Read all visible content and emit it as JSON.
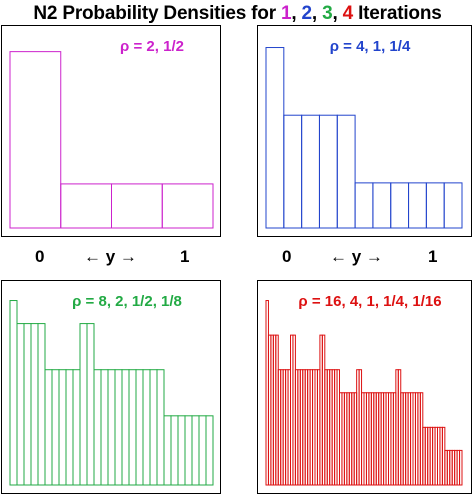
{
  "title": {
    "prefix": "N2 Probability Densities for ",
    "n1": "1",
    "sep1": ", ",
    "n2": "2",
    "sep2": ", ",
    "n3": "3",
    "sep3": ", ",
    "n4": "4",
    "suffix": " Iterations",
    "colors": {
      "n1": "#cc22cc",
      "n2": "#2244cc",
      "n3": "#22aa44",
      "n4": "#dd1111"
    }
  },
  "axis": {
    "left_tick": "0",
    "center_label": "← y →",
    "right_tick": "1"
  },
  "chart_data": [
    {
      "type": "bar",
      "annotation": "ρ = 2, 1/2",
      "color": "#cc22cc",
      "ylim": [
        0,
        2.2
      ],
      "bins": 4,
      "values": [
        2,
        0.5,
        0.5,
        0.5
      ]
    },
    {
      "type": "bar",
      "annotation": "ρ = 4, 1, 1/4",
      "color": "#2244cc",
      "ylim": [
        0,
        4.3
      ],
      "bins": 11,
      "values": [
        4,
        2.5,
        2.5,
        2.5,
        2.5,
        1,
        1,
        1,
        1,
        1,
        1
      ]
    },
    {
      "type": "bar",
      "annotation": "ρ = 8, 2, 1/2, 1/8",
      "color": "#22aa44",
      "ylim": [
        0,
        8.5
      ],
      "bins": 29,
      "values": [
        8,
        7,
        7,
        7,
        7,
        5,
        5,
        5,
        5,
        5,
        7,
        7,
        5,
        5,
        5,
        5,
        5,
        5,
        5,
        5,
        5,
        5,
        3,
        3,
        3,
        3,
        3,
        3,
        3
      ]
    },
    {
      "type": "bar",
      "annotation": "ρ = 16, 4, 1, 1/4, 1/16",
      "color": "#dd1111",
      "ylim": [
        0,
        17
      ],
      "bins": 80,
      "values": [
        16,
        13,
        13,
        13,
        13,
        10,
        10,
        10,
        10,
        10,
        13,
        13,
        10,
        10,
        10,
        10,
        10,
        10,
        10,
        10,
        10,
        10,
        13,
        13,
        10,
        10,
        10,
        10,
        10,
        10,
        8,
        8,
        8,
        8,
        8,
        8,
        8,
        10,
        10,
        8,
        8,
        8,
        8,
        8,
        8,
        8,
        8,
        8,
        8,
        8,
        8,
        8,
        8,
        10,
        10,
        8,
        8,
        8,
        8,
        8,
        8,
        8,
        8,
        8,
        5,
        5,
        5,
        5,
        5,
        5,
        5,
        5,
        5,
        3,
        3,
        3,
        3,
        3,
        3,
        3
      ]
    }
  ]
}
